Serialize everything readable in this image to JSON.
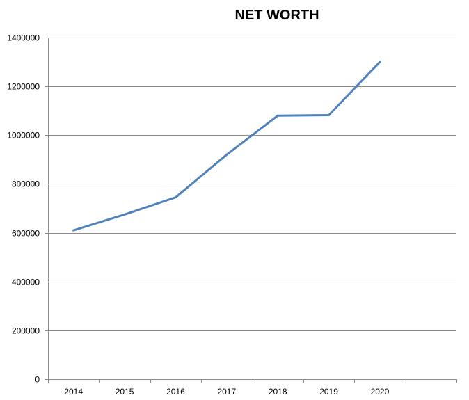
{
  "chart_data": {
    "type": "line",
    "title": "NET WORTH",
    "categories": [
      "2014",
      "2015",
      "2016",
      "2017",
      "2018",
      "2019",
      "2020"
    ],
    "series": [
      {
        "values": [
          610000,
          675000,
          745000,
          920000,
          1080000,
          1082000,
          1300000
        ],
        "color": "#4f81bd"
      }
    ],
    "y_ticks": [
      "0",
      "200000",
      "400000",
      "600000",
      "800000",
      "1000000",
      "1200000",
      "1400000"
    ],
    "ylim": [
      0,
      1400000
    ],
    "grid": true,
    "xlabel": "",
    "ylabel": ""
  }
}
